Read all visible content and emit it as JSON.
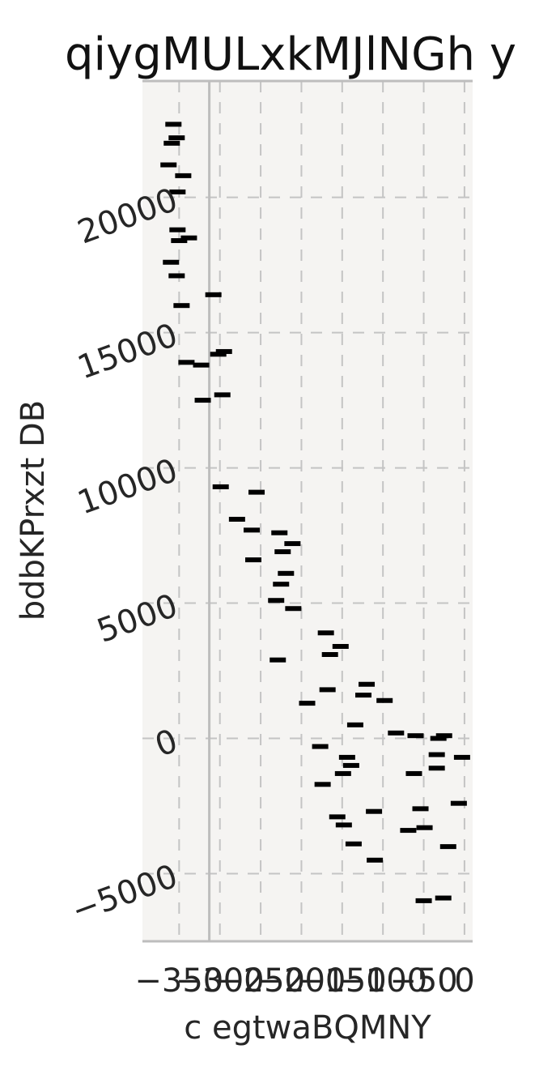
{
  "chart_data": {
    "type": "scatter",
    "title": "qiygMULxkMJlNGh y",
    "xlabel": "c egtwaBQMNY",
    "ylabel": "bdbKPrxzt DB",
    "xlim": [
      -395,
      10
    ],
    "ylim": [
      -7500,
      24300
    ],
    "xticks": [
      -350,
      -300,
      -250,
      -200,
      -150,
      -100,
      -50,
      0
    ],
    "xtick_labels": [
      "−350",
      "−300",
      "−250",
      "−200",
      "−150",
      "−100",
      "−50",
      "0"
    ],
    "yticks": [
      -5000,
      0,
      5000,
      10000,
      15000,
      20000
    ],
    "ytick_labels": [
      "−5000",
      "0",
      "5000",
      "10000",
      "15000",
      "20000"
    ],
    "xgrid_at": [
      -350,
      -300,
      -250,
      -200,
      -150,
      -100,
      -50,
      0
    ],
    "xgrid_note_unused": "",
    "vline": -313,
    "grid": true,
    "background": "#f5f4f2",
    "marker": "hline",
    "marker_color": "#000000",
    "points": [
      {
        "x": -357,
        "y": 22700
      },
      {
        "x": -353,
        "y": 22200
      },
      {
        "x": -359,
        "y": 22000
      },
      {
        "x": -363,
        "y": 21200
      },
      {
        "x": -345,
        "y": 20800
      },
      {
        "x": -352,
        "y": 20200
      },
      {
        "x": -352,
        "y": 18800
      },
      {
        "x": -350,
        "y": 18400
      },
      {
        "x": -338,
        "y": 18500
      },
      {
        "x": -360,
        "y": 17600
      },
      {
        "x": -353,
        "y": 17100
      },
      {
        "x": -347,
        "y": 16000
      },
      {
        "x": -308,
        "y": 16400
      },
      {
        "x": -341,
        "y": 13900
      },
      {
        "x": -323,
        "y": 13800
      },
      {
        "x": -302,
        "y": 14200
      },
      {
        "x": -295,
        "y": 14300
      },
      {
        "x": -321,
        "y": 12500
      },
      {
        "x": -297,
        "y": 12700
      },
      {
        "x": -299,
        "y": 9300
      },
      {
        "x": -255,
        "y": 9100
      },
      {
        "x": -279,
        "y": 8100
      },
      {
        "x": -261,
        "y": 7700
      },
      {
        "x": -227,
        "y": 7600
      },
      {
        "x": -211,
        "y": 7200
      },
      {
        "x": -223,
        "y": 6900
      },
      {
        "x": -259,
        "y": 6600
      },
      {
        "x": -219,
        "y": 6100
      },
      {
        "x": -225,
        "y": 5700
      },
      {
        "x": -231,
        "y": 5100
      },
      {
        "x": -210,
        "y": 4800
      },
      {
        "x": -229,
        "y": 2900
      },
      {
        "x": -170,
        "y": 3900
      },
      {
        "x": -152,
        "y": 3400
      },
      {
        "x": -165,
        "y": 3100
      },
      {
        "x": -168,
        "y": 1800
      },
      {
        "x": -193,
        "y": 1300
      },
      {
        "x": -120,
        "y": 2000
      },
      {
        "x": -124,
        "y": 1600
      },
      {
        "x": -98,
        "y": 1400
      },
      {
        "x": -134,
        "y": 500
      },
      {
        "x": -84,
        "y": 200
      },
      {
        "x": -60,
        "y": 100
      },
      {
        "x": -32,
        "y": 0
      },
      {
        "x": -25,
        "y": 100
      },
      {
        "x": -177,
        "y": -300
      },
      {
        "x": -144,
        "y": -700
      },
      {
        "x": -139,
        "y": -1000
      },
      {
        "x": -149,
        "y": -1300
      },
      {
        "x": -62,
        "y": -1300
      },
      {
        "x": -34,
        "y": -600
      },
      {
        "x": -34,
        "y": -1100
      },
      {
        "x": -3,
        "y": -700
      },
      {
        "x": -174,
        "y": -1700
      },
      {
        "x": -111,
        "y": -2700
      },
      {
        "x": -54,
        "y": -2600
      },
      {
        "x": -7,
        "y": -2400
      },
      {
        "x": -156,
        "y": -2900
      },
      {
        "x": -148,
        "y": -3200
      },
      {
        "x": -69,
        "y": -3400
      },
      {
        "x": -49,
        "y": -3300
      },
      {
        "x": -136,
        "y": -3900
      },
      {
        "x": -110,
        "y": -4500
      },
      {
        "x": -20,
        "y": -4000
      },
      {
        "x": -50,
        "y": -6000
      },
      {
        "x": -26,
        "y": -5900
      }
    ]
  }
}
